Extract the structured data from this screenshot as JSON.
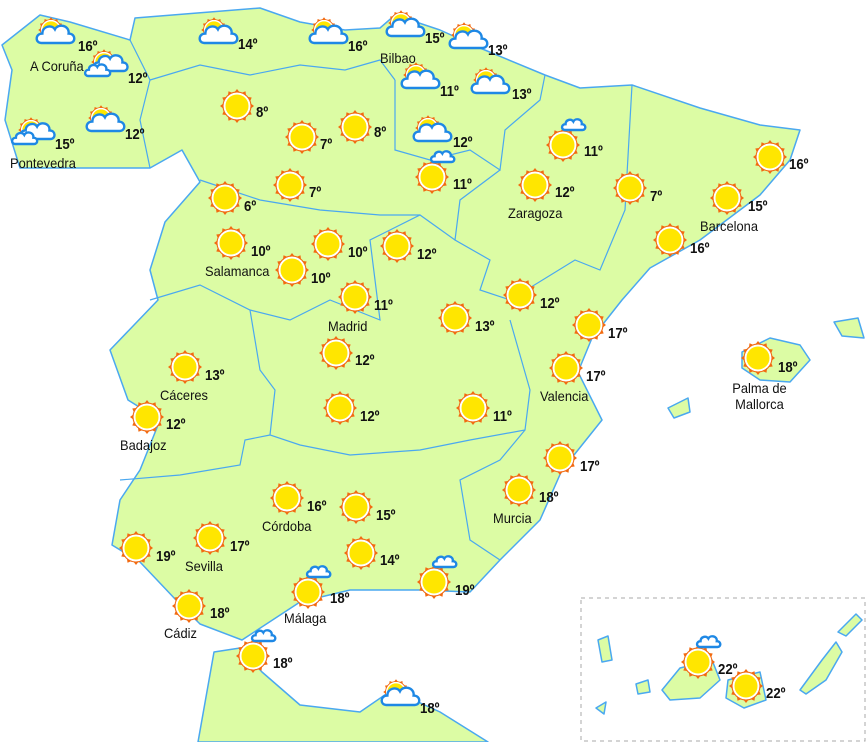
{
  "colors": {
    "land": "#dcfca4",
    "border": "#4aa8f0",
    "sea": "#ffffff",
    "sun_rays": "#f26a10",
    "sun_core": "#ffe600",
    "cloud_stroke": "#1e88e5"
  },
  "cities": [
    {
      "temp": "16º",
      "label": "A Coruña",
      "icon": "sun-cloud-large"
    },
    {
      "temp": "12º",
      "label": "",
      "icon": "sun-cloud-double"
    },
    {
      "temp": "15º",
      "label": "Pontevedra",
      "icon": "sun-cloud-double"
    },
    {
      "temp": "12º",
      "label": "",
      "icon": "sun-cloud-large"
    },
    {
      "temp": "14º",
      "label": "",
      "icon": "sun-cloud-large"
    },
    {
      "temp": "16º",
      "label": "",
      "icon": "sun-cloud-large"
    },
    {
      "temp": "15º",
      "label": "Bilbao",
      "icon": "sun-cloud-large"
    },
    {
      "temp": "13º",
      "label": "",
      "icon": "sun-cloud-large"
    },
    {
      "temp": "11º",
      "label": "",
      "icon": "sun-cloud-large"
    },
    {
      "temp": "13º",
      "label": "",
      "icon": "sun-cloud-large"
    },
    {
      "temp": "8º",
      "label": "",
      "icon": "sun"
    },
    {
      "temp": "7º",
      "label": "",
      "icon": "sun"
    },
    {
      "temp": "8º",
      "label": "",
      "icon": "sun"
    },
    {
      "temp": "12º",
      "label": "",
      "icon": "sun-cloud-large"
    },
    {
      "temp": "11º",
      "label": "",
      "icon": "sun-cloud-small"
    },
    {
      "temp": "11º",
      "label": "",
      "icon": "sun-cloud-small"
    },
    {
      "temp": "6º",
      "label": "",
      "icon": "sun"
    },
    {
      "temp": "7º",
      "label": "",
      "icon": "sun"
    },
    {
      "temp": "12º",
      "label": "Zaragoza",
      "icon": "sun"
    },
    {
      "temp": "7º",
      "label": "",
      "icon": "sun"
    },
    {
      "temp": "16º",
      "label": "",
      "icon": "sun"
    },
    {
      "temp": "15º",
      "label": "Barcelona",
      "icon": "sun"
    },
    {
      "temp": "16º",
      "label": "",
      "icon": "sun"
    },
    {
      "temp": "10º",
      "label": "Salamanca",
      "icon": "sun"
    },
    {
      "temp": "10º",
      "label": "",
      "icon": "sun"
    },
    {
      "temp": "10º",
      "label": "",
      "icon": "sun"
    },
    {
      "temp": "12º",
      "label": "",
      "icon": "sun"
    },
    {
      "temp": "11º",
      "label": "Madrid",
      "icon": "sun"
    },
    {
      "temp": "12º",
      "label": "",
      "icon": "sun"
    },
    {
      "temp": "13º",
      "label": "",
      "icon": "sun"
    },
    {
      "temp": "17º",
      "label": "",
      "icon": "sun"
    },
    {
      "temp": "17º",
      "label": "Valencia",
      "icon": "sun"
    },
    {
      "temp": "18º",
      "label": "Palma de Mallorca",
      "icon": "sun"
    },
    {
      "temp": "13º",
      "label": "Cáceres",
      "icon": "sun"
    },
    {
      "temp": "12º",
      "label": "Badajoz",
      "icon": "sun"
    },
    {
      "temp": "12º",
      "label": "",
      "icon": "sun"
    },
    {
      "temp": "12º",
      "label": "",
      "icon": "sun"
    },
    {
      "temp": "11º",
      "label": "",
      "icon": "sun"
    },
    {
      "temp": "17º",
      "label": "",
      "icon": "sun"
    },
    {
      "temp": "18º",
      "label": "Murcia",
      "icon": "sun"
    },
    {
      "temp": "16º",
      "label": "Córdoba",
      "icon": "sun"
    },
    {
      "temp": "15º",
      "label": "",
      "icon": "sun"
    },
    {
      "temp": "14º",
      "label": "",
      "icon": "sun"
    },
    {
      "temp": "17º",
      "label": "Sevilla",
      "icon": "sun"
    },
    {
      "temp": "19º",
      "label": "",
      "icon": "sun"
    },
    {
      "temp": "18º",
      "label": "Cádiz",
      "icon": "sun"
    },
    {
      "temp": "18º",
      "label": "Málaga",
      "icon": "sun-cloud-small"
    },
    {
      "temp": "19º",
      "label": "",
      "icon": "sun-cloud-small"
    },
    {
      "temp": "18º",
      "label": "",
      "icon": "sun-cloud-small"
    },
    {
      "temp": "18º",
      "label": "",
      "icon": "sun-cloud-large"
    },
    {
      "temp": "22º",
      "label": "",
      "icon": "sun-cloud-small"
    },
    {
      "temp": "22º",
      "label": "",
      "icon": "sun"
    }
  ]
}
